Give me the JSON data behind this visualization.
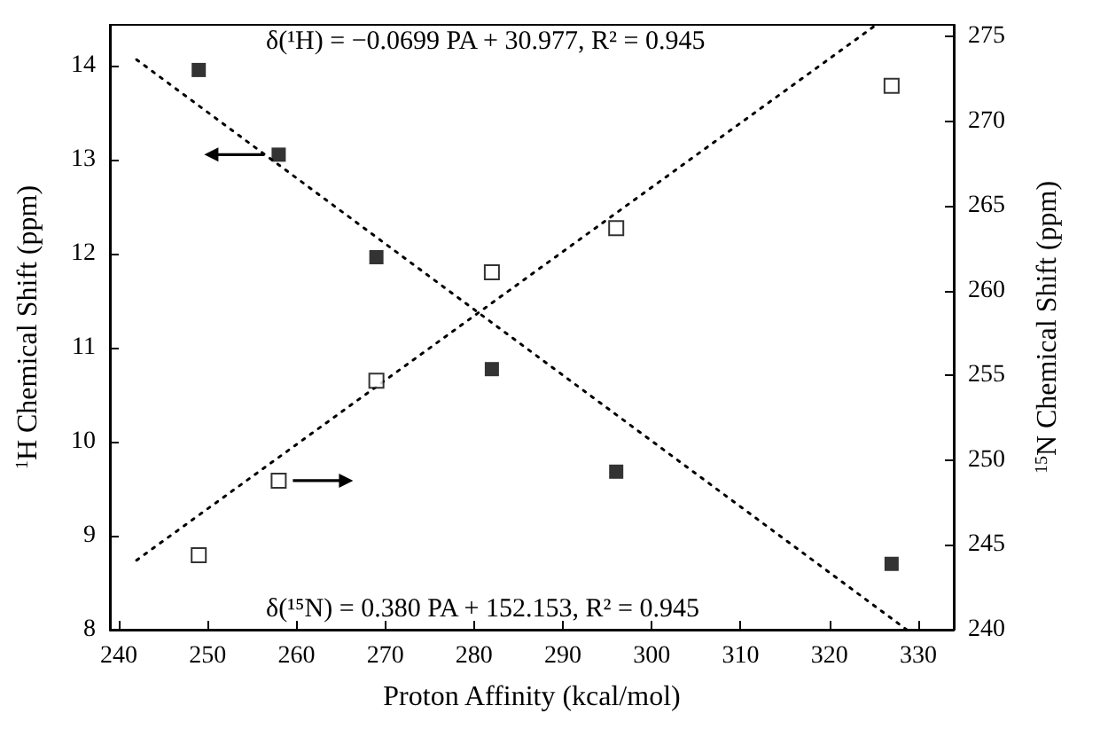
{
  "chart_data": {
    "type": "scatter",
    "xlabel": "Proton Affinity (kcal/mol)",
    "ylabel": "$^{1}$H Chemical Shift (ppm)",
    "y2label": "$^{15}$N Chemical Shift (ppm)",
    "annotations": [
      "δ(¹H) = −0.0699 PA + 30.977, R² = 0.945",
      "δ(¹⁵N) = 0.380 PA + 152.153, R² = 0.945"
    ],
    "series": [
      {
        "color": "#000000",
        "marker": "square",
        "x": [
          249,
          258,
          269,
          282,
          296,
          327
        ],
        "values": [
          13.95,
          13.05,
          11.96,
          10.77,
          9.68,
          8.7
        ]
      },
      {
        "color": "#000000",
        "marker": "square",
        "axis": "y2",
        "x": [
          249,
          258,
          269,
          282,
          296,
          327
        ],
        "values": [
          244.4,
          248.8,
          254.7,
          261.1,
          263.7,
          272.1
        ]
      },
      {
        "type": "line",
        "color": "#000000",
        "marker": "none",
        "line_style": "dotted",
        "x": [
          242,
          328.7
        ],
        "values": [
          14.06,
          8.0
        ]
      },
      {
        "type": "line",
        "color": "#000000",
        "marker": "none",
        "line_style": "dotted",
        "axis": "y2",
        "x": [
          242,
          325
        ],
        "values": [
          244.1,
          275.6
        ]
      }
    ],
    "xlim": [
      239,
      334
    ],
    "xticks": [
      240,
      250,
      260,
      270,
      280,
      290,
      300,
      310,
      320,
      330
    ],
    "ylim": [
      8,
      14.43
    ],
    "yticks": [
      8,
      9,
      10,
      11,
      12,
      13,
      14
    ],
    "y2lim": [
      240,
      275.7
    ],
    "y2ticks": [
      240,
      245,
      250,
      255,
      260,
      265,
      270,
      275
    ],
    "grid": false
  }
}
